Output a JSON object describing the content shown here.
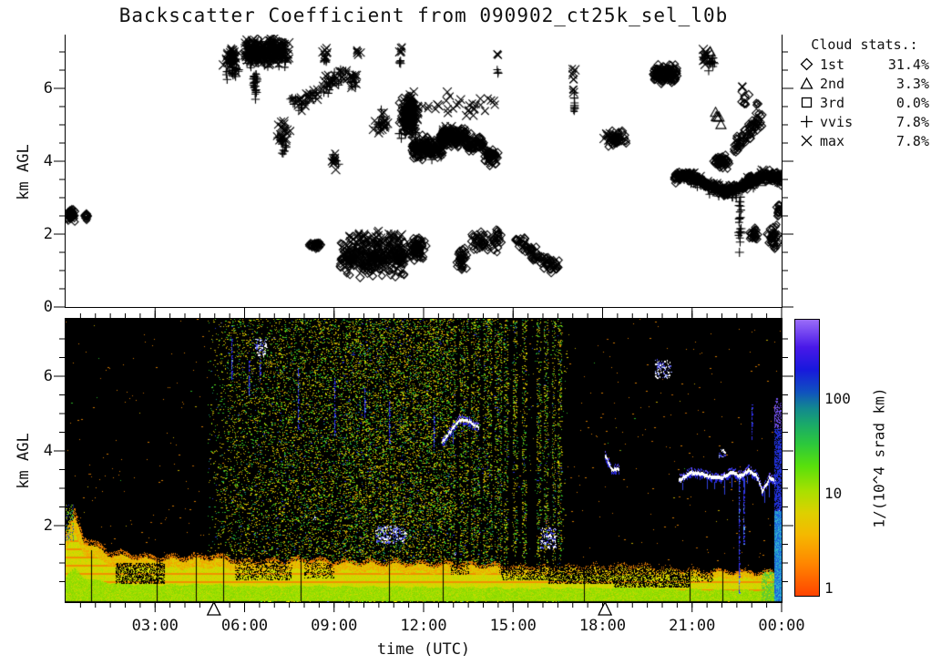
{
  "title": "Backscatter Coefficient from 090902_ct25k_sel_l0b",
  "axes": {
    "left_label": "km AGL",
    "x_label": "time (UTC)",
    "top_panel_yticks": [
      "0",
      "2",
      "4",
      "6"
    ],
    "bottom_panel_yticks": [
      "2",
      "4",
      "6"
    ],
    "x_tick_labels": [
      "03:00",
      "06:00",
      "09:00",
      "12:00",
      "15:00",
      "18:00",
      "21:00",
      "00:00"
    ],
    "x_tick_hours": [
      3,
      6,
      9,
      12,
      15,
      18,
      21,
      24
    ],
    "x_range_hours": [
      0,
      24
    ],
    "y_range_km": [
      0,
      7.5
    ]
  },
  "legend": {
    "title": "Cloud stats.:",
    "items": [
      {
        "symbol": "diamond",
        "label": "1st",
        "value": "31.4%"
      },
      {
        "symbol": "triangle",
        "label": "2nd",
        "value": "3.3%"
      },
      {
        "symbol": "square",
        "label": "3rd",
        "value": "0.0%"
      },
      {
        "symbol": "plus",
        "label": "vvis",
        "value": "7.8%"
      },
      {
        "symbol": "cross",
        "label": "max",
        "value": "7.8%"
      }
    ]
  },
  "colorbar": {
    "title": "1/(10^4 srad km)",
    "tick_values": [
      100,
      10,
      1
    ],
    "tick_labels": [
      "100",
      "10",
      "1"
    ],
    "scale": "log",
    "stops_bottom_to_top": [
      "#ff4400",
      "#ff8800",
      "#f5b800",
      "#ddd000",
      "#a8e000",
      "#58e00c",
      "#2cc83c",
      "#1aaa68",
      "#128890",
      "#1050c0",
      "#1818dd",
      "#4818e8",
      "#9a6cf8"
    ],
    "stop_positions": [
      0,
      0.12,
      0.22,
      0.3,
      0.38,
      0.47,
      0.55,
      0.62,
      0.68,
      0.74,
      0.82,
      0.9,
      1.0
    ]
  },
  "sun_markers": {
    "symbol": "triangle",
    "times_utc": [
      "04:58",
      "18:05"
    ],
    "hours": [
      4.97,
      18.08
    ]
  },
  "chart_data": {
    "type": "scatter+heatmap",
    "x_unit": "hours UTC",
    "y_unit": "km AGL",
    "top_panel": {
      "type": "scatter",
      "description": "cloud base / vertical-visibility / max-signal heights",
      "cluster_fields": [
        "symbol",
        "t_start_h",
        "t_end_h",
        "h_min_km",
        "h_max_km",
        "count",
        "mode(g=blob,b=band,w=wavyband,v=verticalcolumn)"
      ],
      "clusters": [
        [
          "diamond",
          0.0,
          0.4,
          2.3,
          2.75,
          40,
          "g"
        ],
        [
          "diamond",
          0.55,
          0.8,
          2.35,
          2.6,
          12,
          "g"
        ],
        [
          "cross",
          5.25,
          5.85,
          6.4,
          7.3,
          40,
          "g"
        ],
        [
          "plus",
          5.3,
          5.85,
          6.1,
          6.95,
          28,
          "g"
        ],
        [
          "diamond",
          6.1,
          7.3,
          6.6,
          7.45,
          150,
          "b"
        ],
        [
          "plus",
          6.0,
          7.4,
          6.45,
          7.4,
          110,
          "b"
        ],
        [
          "cross",
          6.0,
          7.5,
          6.55,
          7.5,
          110,
          "b"
        ],
        [
          "plus",
          6.15,
          6.55,
          5.7,
          6.45,
          26,
          "v"
        ],
        [
          "cross",
          6.95,
          7.6,
          4.3,
          5.3,
          22,
          "g"
        ],
        [
          "plus",
          7.05,
          7.55,
          4.0,
          4.9,
          16,
          "g"
        ],
        [
          "plus",
          7.5,
          9.8,
          5.3,
          6.6,
          55,
          "w"
        ],
        [
          "cross",
          7.55,
          9.85,
          5.35,
          6.65,
          55,
          "w"
        ],
        [
          "cross",
          8.55,
          8.85,
          6.6,
          7.25,
          9,
          "g"
        ],
        [
          "plus",
          8.6,
          8.8,
          6.65,
          6.95,
          5,
          "g"
        ],
        [
          "cross",
          9.7,
          9.95,
          6.8,
          7.15,
          6,
          "g"
        ],
        [
          "cross",
          8.85,
          9.25,
          3.7,
          4.3,
          10,
          "g"
        ],
        [
          "plus",
          8.9,
          9.2,
          3.75,
          4.25,
          7,
          "g"
        ],
        [
          "cross",
          10.2,
          10.95,
          4.6,
          5.6,
          16,
          "g"
        ],
        [
          "plus",
          10.25,
          10.9,
          4.55,
          5.5,
          12,
          "g"
        ],
        [
          "cross",
          11.15,
          11.35,
          6.85,
          7.2,
          5,
          "g"
        ],
        [
          "plus",
          11.15,
          11.3,
          6.6,
          6.85,
          4,
          "g"
        ],
        [
          "diamond",
          11.1,
          11.85,
          4.6,
          5.9,
          110,
          "g"
        ],
        [
          "plus",
          11.1,
          11.9,
          4.5,
          5.9,
          60,
          "g"
        ],
        [
          "cross",
          11.15,
          11.95,
          4.6,
          6.0,
          60,
          "g"
        ],
        [
          "diamond",
          11.6,
          12.65,
          4.0,
          4.75,
          150,
          "b"
        ],
        [
          "plus",
          11.65,
          12.6,
          3.95,
          4.7,
          70,
          "b"
        ],
        [
          "diamond",
          12.55,
          13.45,
          4.3,
          5.0,
          130,
          "b"
        ],
        [
          "cross",
          12.6,
          13.4,
          4.4,
          5.1,
          55,
          "b"
        ],
        [
          "diamond",
          13.35,
          14.05,
          4.15,
          4.8,
          80,
          "b"
        ],
        [
          "diamond",
          13.95,
          14.55,
          3.8,
          4.5,
          55,
          "g"
        ],
        [
          "cross",
          11.3,
          14.4,
          5.1,
          6.0,
          36,
          "b"
        ],
        [
          "cross",
          14.4,
          14.55,
          6.8,
          7.0,
          3,
          "g"
        ],
        [
          "plus",
          14.45,
          14.6,
          6.3,
          6.55,
          3,
          "g"
        ],
        [
          "cross",
          16.9,
          17.15,
          5.8,
          6.6,
          9,
          "v"
        ],
        [
          "plus",
          16.95,
          17.15,
          5.3,
          5.95,
          8,
          "v"
        ],
        [
          "diamond",
          8.0,
          8.75,
          1.55,
          1.85,
          30,
          "g"
        ],
        [
          "diamond",
          9.2,
          11.35,
          0.75,
          1.95,
          330,
          "b"
        ],
        [
          "cross",
          9.45,
          11.3,
          1.55,
          2.15,
          55,
          "b"
        ],
        [
          "diamond",
          11.35,
          12.15,
          1.2,
          2.0,
          80,
          "g"
        ],
        [
          "diamond",
          13.0,
          13.55,
          0.95,
          1.75,
          40,
          "g"
        ],
        [
          "diamond",
          13.6,
          14.6,
          1.35,
          2.3,
          65,
          "b"
        ],
        [
          "diamond",
          15.05,
          15.15,
          1.75,
          1.95,
          6,
          "g"
        ],
        [
          "diamond",
          15.2,
          16.55,
          0.9,
          2.05,
          85,
          "w"
        ],
        [
          "diamond",
          18.05,
          18.85,
          4.3,
          4.9,
          45,
          "g"
        ],
        [
          "cross",
          18.0,
          18.35,
          4.4,
          4.9,
          10,
          "g"
        ],
        [
          "diamond",
          19.7,
          20.5,
          6.05,
          6.75,
          130,
          "b"
        ],
        [
          "cross",
          21.25,
          21.65,
          6.55,
          7.25,
          13,
          "g"
        ],
        [
          "plus",
          21.3,
          21.95,
          6.35,
          7.1,
          13,
          "g"
        ],
        [
          "triangle",
          21.5,
          21.65,
          6.9,
          7.1,
          2,
          "g"
        ],
        [
          "triangle",
          21.45,
          22.1,
          4.95,
          5.55,
          5,
          "g"
        ],
        [
          "diamond",
          22.5,
          23.05,
          5.4,
          6.0,
          9,
          "g"
        ],
        [
          "cross",
          22.6,
          22.75,
          5.9,
          6.1,
          3,
          "g"
        ],
        [
          "diamond",
          23.05,
          23.25,
          5.45,
          5.7,
          4,
          "g"
        ],
        [
          "diamond",
          22.4,
          23.35,
          4.0,
          5.5,
          75,
          "w"
        ],
        [
          "diamond",
          20.4,
          24.0,
          3.05,
          3.75,
          380,
          "w"
        ],
        [
          "plus",
          20.5,
          24.0,
          2.95,
          3.7,
          110,
          "w"
        ],
        [
          "cross",
          20.6,
          23.95,
          3.1,
          3.8,
          70,
          "w"
        ],
        [
          "diamond",
          21.6,
          22.35,
          3.7,
          4.25,
          55,
          "g"
        ],
        [
          "plus",
          22.5,
          22.7,
          1.4,
          3.1,
          22,
          "v"
        ],
        [
          "diamond",
          22.85,
          23.3,
          1.7,
          2.25,
          28,
          "g"
        ],
        [
          "diamond",
          23.45,
          23.98,
          1.5,
          2.3,
          40,
          "g"
        ],
        [
          "diamond",
          23.8,
          24.0,
          2.4,
          2.9,
          14,
          "g"
        ],
        [
          "triangle",
          23.25,
          23.55,
          3.35,
          3.6,
          3,
          "g"
        ]
      ]
    },
    "bottom_panel": {
      "type": "heatmap",
      "description": "attenuated backscatter, log color scale 1-500 (1/(10^4 srad km)); black=below threshold, daytime solar noise speckle 05:00-16:45",
      "boundary_layer_top_km": [
        [
          0,
          1.9
        ],
        [
          0.3,
          2.45
        ],
        [
          0.6,
          1.75
        ],
        [
          1.5,
          1.35
        ],
        [
          3,
          1.2
        ],
        [
          5,
          1.25
        ],
        [
          6,
          1.1
        ],
        [
          8,
          1.15
        ],
        [
          9,
          1.1
        ],
        [
          12,
          1.05
        ],
        [
          14,
          1.0
        ],
        [
          15,
          0.95
        ],
        [
          17,
          0.95
        ],
        [
          19,
          1.0
        ],
        [
          21,
          0.85
        ],
        [
          23,
          0.8
        ],
        [
          24,
          0.8
        ]
      ],
      "speckle_day_hours": [
        4.8,
        14.6
      ],
      "speckle_stripe_hours": [
        14.75,
        15.05,
        15.35,
        15.85,
        16.1,
        16.35,
        16.55
      ],
      "gap_line_hours": [
        0.85,
        3.05,
        4.37,
        5.28,
        7.87,
        10.84,
        12.64,
        17.37,
        20.92,
        22.02
      ],
      "dark_holes": [
        [
          1.7,
          3.3,
          0.45,
          1.0,
          0.55
        ],
        [
          5.7,
          7.6,
          0.55,
          1.05,
          0.35
        ],
        [
          8.0,
          9.0,
          0.6,
          1.0,
          0.3
        ],
        [
          12.9,
          13.5,
          0.7,
          1.0,
          0.3
        ],
        [
          14.6,
          16.2,
          0.55,
          1.05,
          0.45
        ],
        [
          16.2,
          18.4,
          0.45,
          1.1,
          0.6
        ],
        [
          18.4,
          20.9,
          0.35,
          1.05,
          0.55
        ],
        [
          21.0,
          21.7,
          0.5,
          0.9,
          0.35
        ]
      ],
      "blue_streaks": [
        [
          5.55,
          5.9,
          7.0
        ],
        [
          6.15,
          5.5,
          6.4
        ],
        [
          6.5,
          5.9,
          6.6
        ],
        [
          7.78,
          4.6,
          6.2
        ],
        [
          9.02,
          4.4,
          6.0
        ],
        [
          10.0,
          4.9,
          5.7
        ],
        [
          10.85,
          4.2,
          5.3
        ],
        [
          12.35,
          4.0,
          5.0
        ],
        [
          23.0,
          4.3,
          5.3
        ],
        [
          22.55,
          0.1,
          3.3
        ],
        [
          22.72,
          1.5,
          3.2
        ]
      ],
      "cloud_lines": [
        [
          [
            12.62,
            4.25
          ],
          [
            12.9,
            4.55
          ],
          [
            13.2,
            4.85
          ],
          [
            13.55,
            4.8
          ],
          [
            13.85,
            4.6
          ]
        ],
        [
          [
            18.1,
            3.85
          ],
          [
            18.3,
            3.5
          ],
          [
            18.55,
            3.55
          ]
        ],
        [
          [
            20.55,
            3.25
          ],
          [
            21.0,
            3.45
          ],
          [
            21.5,
            3.35
          ],
          [
            22.0,
            3.3
          ],
          [
            22.3,
            3.45
          ],
          [
            22.6,
            3.35
          ],
          [
            22.9,
            3.5
          ],
          [
            23.15,
            3.35
          ],
          [
            23.35,
            2.95
          ],
          [
            23.6,
            3.3
          ],
          [
            23.8,
            3.2
          ]
        ]
      ],
      "cloud_spots": [
        [
          6.35,
          6.75,
          6.55,
          7.0
        ],
        [
          19.75,
          20.3,
          5.95,
          6.45
        ],
        [
          21.9,
          22.1,
          3.8,
          4.05
        ],
        [
          10.4,
          11.4,
          1.55,
          2.0
        ],
        [
          15.9,
          16.45,
          1.4,
          1.95
        ],
        [
          8.3,
          8.4,
          2.15,
          2.25
        ],
        [
          13.0,
          13.1,
          1.2,
          1.3
        ]
      ],
      "precip_end_of_day_hours": [
        23.76,
        24.0
      ]
    }
  }
}
